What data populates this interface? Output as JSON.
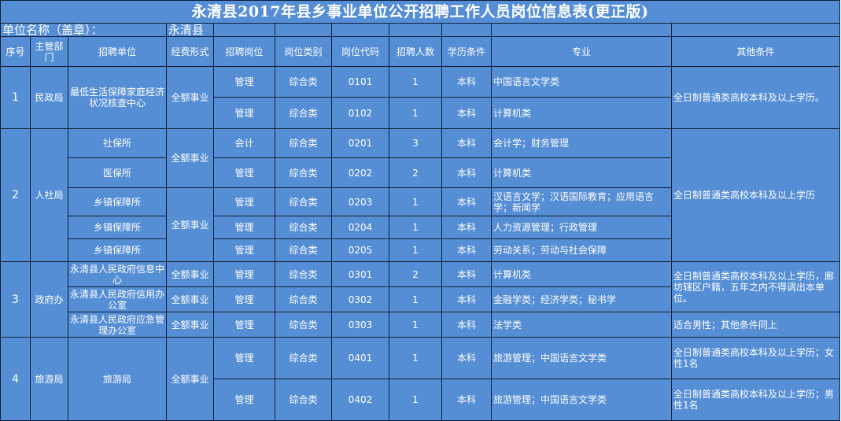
{
  "title": "永清县2017年县乡事业单位公开招聘工作人员岗位信息表(更正版)",
  "unit_label": "单位名称（盖章）：",
  "unit_value": "永清县",
  "headers": [
    "序号",
    "主管部门",
    "招聘单位",
    "经费形式",
    "招聘岗位",
    "岗位类别",
    "岗位代码",
    "招聘人数",
    "学历条件",
    "专业",
    "其他条件"
  ],
  "groups": [
    {
      "no": "1",
      "dept": "民政局",
      "other": "全日制普通类高校本科及以上学历。"
    },
    {
      "no": "2",
      "dept": "人社局",
      "other": "全日制普通类高校本科及以上学历"
    },
    {
      "no": "3",
      "dept": "政府办",
      "other": "全日制普通类高校本科及以上学历，廊坊辖区户籍，五年之内不得调出本单位。"
    },
    {
      "no": "4",
      "dept": "旅游局",
      "unit": "旅游局",
      "funding": "全额事业"
    }
  ],
  "rows": [
    {
      "unit": "最低生活保障家庭经济状况核查中心",
      "funding": "全额事业",
      "post": "管理",
      "type": "综合类",
      "code": "0101",
      "count": "1",
      "edu": "本科",
      "major": "中国语言文学类"
    },
    {
      "post": "管理",
      "type": "综合类",
      "code": "0102",
      "count": "1",
      "edu": "本科",
      "major": "计算机类"
    },
    {
      "unit": "社保所",
      "funding": "全额事业",
      "post": "会计",
      "type": "综合类",
      "code": "0201",
      "count": "3",
      "edu": "本科",
      "major": "会计学；财务管理"
    },
    {
      "unit": "医保所",
      "post": "管理",
      "type": "综合类",
      "code": "0202",
      "count": "2",
      "edu": "本科",
      "major": "计算机类"
    },
    {
      "unit": "乡镇保障所",
      "funding": "全额事业",
      "post": "管理",
      "type": "综合类",
      "code": "0203",
      "count": "1",
      "edu": "本科",
      "major": "汉语言文学；汉语国际教育；应用语言学；新闻学"
    },
    {
      "unit": "乡镇保障所",
      "post": "管理",
      "type": "综合类",
      "code": "0204",
      "count": "1",
      "edu": "本科",
      "major": "人力资源管理；行政管理"
    },
    {
      "unit": "乡镇保障所",
      "post": "管理",
      "type": "综合类",
      "code": "0205",
      "count": "1",
      "edu": "本科",
      "major": "劳动关系；劳动与社会保障"
    },
    {
      "unit": "永清县人民政府信息中心",
      "funding": "全额事业",
      "post": "管理",
      "type": "综合类",
      "code": "0301",
      "count": "2",
      "edu": "本科",
      "major": "计算机类"
    },
    {
      "unit": "永清县人民政府信用办公室",
      "funding": "全额事业",
      "post": "管理",
      "type": "综合类",
      "code": "0302",
      "count": "1",
      "edu": "本科",
      "major": "金融学类；经济学类；秘书学"
    },
    {
      "unit": "永清县人民政府应急管理办公室",
      "funding": "全额事业",
      "post": "管理",
      "type": "综合类",
      "code": "0303",
      "count": "1",
      "edu": "本科",
      "major": "法学类",
      "other": "适合男性；其他条件同上"
    },
    {
      "post": "管理",
      "type": "综合类",
      "code": "0401",
      "count": "1",
      "edu": "本科",
      "major": "旅游管理；中国语言文学类",
      "other": "全日制普通类高校本科及以上学历；女性1名"
    },
    {
      "post": "管理",
      "type": "综合类",
      "code": "0402",
      "count": "1",
      "edu": "本科",
      "major": "旅游管理；中国语言文学类",
      "other": "全日制普通类高校本科及以上学历；男性1名"
    }
  ],
  "colors": {
    "cell_bg": "#558ed5",
    "text": "#ffffff",
    "border": "#0f1f3a"
  }
}
